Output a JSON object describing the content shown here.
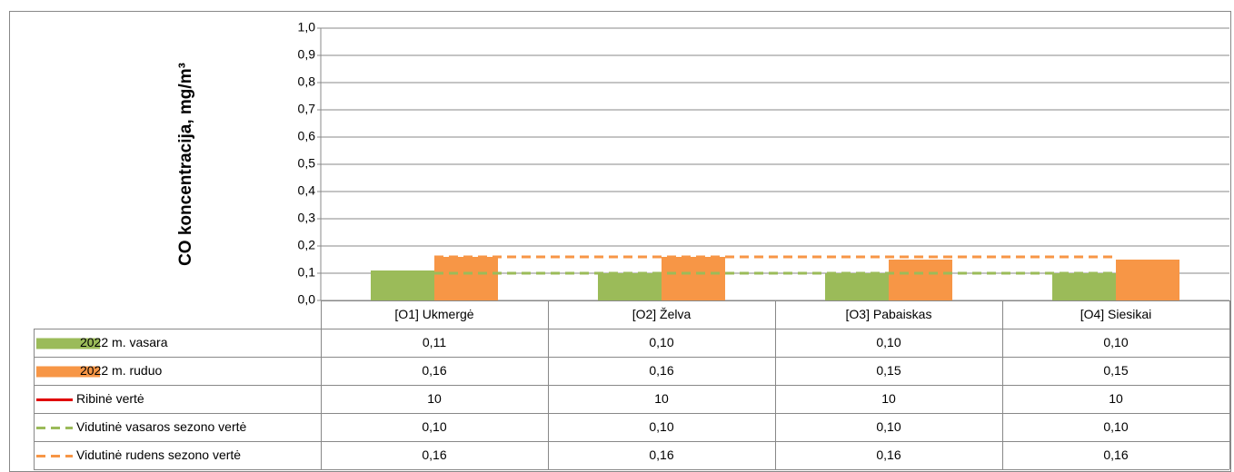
{
  "chart_data": {
    "type": "bar",
    "y_label": "CO koncentracija, mg/m³",
    "categories": [
      "[O1] Ukmergė",
      "[O2] Želva",
      "[O3] Pabaiskas",
      "[O4] Siesikai"
    ],
    "ylim": [
      0,
      1
    ],
    "yticks": [
      {
        "value": 0,
        "label": "0,0"
      },
      {
        "value": 0.1,
        "label": "0,1"
      },
      {
        "value": 0.2,
        "label": "0,2"
      },
      {
        "value": 0.3,
        "label": "0,3"
      },
      {
        "value": 0.4,
        "label": "0,4"
      },
      {
        "value": 0.5,
        "label": "0,5"
      },
      {
        "value": 0.6,
        "label": "0,6"
      },
      {
        "value": 0.7,
        "label": "0,7"
      },
      {
        "value": 0.8,
        "label": "0,8"
      },
      {
        "value": 0.9,
        "label": "0,9"
      },
      {
        "value": 1,
        "label": "1,0"
      }
    ],
    "grid": true,
    "series": [
      {
        "name": "2022 m. vasara",
        "type": "bar",
        "color": "#9bbb59",
        "values": [
          0.11,
          0.1,
          0.1,
          0.1
        ],
        "value_labels": [
          "0,11",
          "0,10",
          "0,10",
          "0,10"
        ]
      },
      {
        "name": "2022 m. ruduo",
        "type": "bar",
        "color": "#f79646",
        "values": [
          0.16,
          0.16,
          0.15,
          0.15
        ],
        "value_labels": [
          "0,16",
          "0,16",
          "0,15",
          "0,15"
        ]
      },
      {
        "name": "Ribinė vertė",
        "type": "line",
        "dashed": false,
        "color": "#e00000",
        "values": [
          10,
          10,
          10,
          10
        ]
      },
      {
        "name": "Vidutinė vasaros sezono vertė",
        "type": "line",
        "dashed": true,
        "color": "#9bbb59",
        "values": [
          0.1,
          0.1,
          0.1,
          0.1
        ],
        "value_labels": [
          "0,10",
          "0,10",
          "0,10",
          "0,10"
        ]
      },
      {
        "name": "Vidutinė rudens sezono vertė",
        "type": "line",
        "dashed": true,
        "color": "#f79646",
        "values": [
          0.16,
          0.16,
          0.16,
          0.16
        ],
        "value_labels": [
          "0,16",
          "0,16",
          "0,16",
          "0,16"
        ]
      }
    ]
  }
}
